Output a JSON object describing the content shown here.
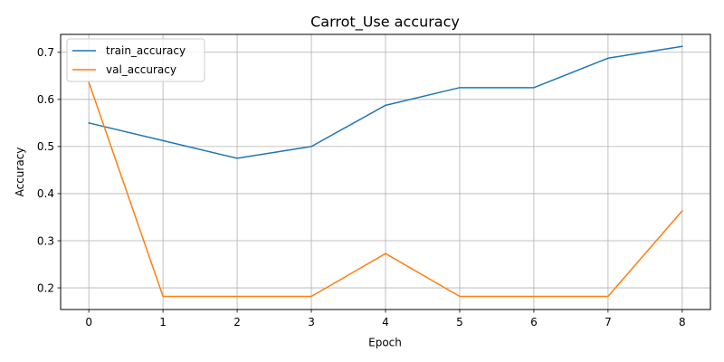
{
  "chart_data": {
    "type": "line",
    "title": "Carrot_Use accuracy",
    "xlabel": "Epoch",
    "ylabel": "Accuracy",
    "x": [
      0,
      1,
      2,
      3,
      4,
      5,
      6,
      7,
      8
    ],
    "xticks": [
      "0",
      "1",
      "2",
      "3",
      "4",
      "5",
      "6",
      "7",
      "8"
    ],
    "yticks": [
      "0.2",
      "0.3",
      "0.4",
      "0.5",
      "0.6",
      "0.7"
    ],
    "xlim": [
      -0.38,
      8.38
    ],
    "ylim": [
      0.154,
      0.738
    ],
    "grid": true,
    "legend_position": "top-left",
    "series": [
      {
        "name": "train_accuracy",
        "color": "#1f77b4",
        "values": [
          0.55,
          0.5125,
          0.475,
          0.5,
          0.5875,
          0.625,
          0.625,
          0.6875,
          0.7125
        ]
      },
      {
        "name": "val_accuracy",
        "color": "#ff7f0e",
        "values": [
          0.6364,
          0.1818,
          0.1818,
          0.1818,
          0.2727,
          0.1818,
          0.1818,
          0.1818,
          0.3636
        ]
      }
    ]
  }
}
